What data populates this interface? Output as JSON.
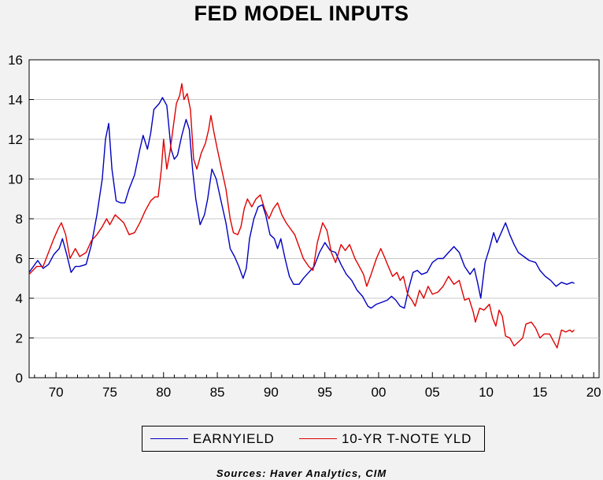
{
  "chart_data": {
    "type": "line",
    "title": "FED MODEL INPUTS",
    "source": "Sources:  Haver Analytics, CIM",
    "xlabel": "",
    "ylabel": "",
    "xlim": [
      1967.5,
      2020.5
    ],
    "ylim": [
      0,
      16
    ],
    "grid": true,
    "legend_position": "bottom",
    "x_tick_labels": [
      "70",
      "75",
      "80",
      "85",
      "90",
      "95",
      "00",
      "05",
      "10",
      "15",
      "20"
    ],
    "x_tick_values": [
      1970,
      1975,
      1980,
      1985,
      1990,
      1995,
      2000,
      2005,
      2010,
      2015,
      2020
    ],
    "y_tick_labels": [
      "0",
      "2",
      "4",
      "6",
      "8",
      "10",
      "12",
      "14",
      "16"
    ],
    "y_tick_values": [
      0,
      2,
      4,
      6,
      8,
      10,
      12,
      14,
      16
    ],
    "series": [
      {
        "name": "EARNYIELD",
        "color": "#0000c0",
        "points": [
          [
            1967.5,
            5.3
          ],
          [
            1968.3,
            5.9
          ],
          [
            1968.8,
            5.5
          ],
          [
            1969.3,
            5.7
          ],
          [
            1969.8,
            6.2
          ],
          [
            1970.3,
            6.5
          ],
          [
            1970.6,
            7.0
          ],
          [
            1971.0,
            6.2
          ],
          [
            1971.4,
            5.3
          ],
          [
            1971.8,
            5.6
          ],
          [
            1972.2,
            5.6
          ],
          [
            1972.8,
            5.7
          ],
          [
            1973.3,
            6.7
          ],
          [
            1973.8,
            8.2
          ],
          [
            1974.3,
            10.0
          ],
          [
            1974.6,
            12.0
          ],
          [
            1974.9,
            12.8
          ],
          [
            1975.2,
            10.5
          ],
          [
            1975.6,
            8.9
          ],
          [
            1976.0,
            8.8
          ],
          [
            1976.4,
            8.8
          ],
          [
            1976.8,
            9.5
          ],
          [
            1977.3,
            10.2
          ],
          [
            1977.8,
            11.5
          ],
          [
            1978.1,
            12.2
          ],
          [
            1978.5,
            11.5
          ],
          [
            1978.8,
            12.3
          ],
          [
            1979.1,
            13.5
          ],
          [
            1979.6,
            13.8
          ],
          [
            1979.9,
            14.1
          ],
          [
            1980.3,
            13.7
          ],
          [
            1980.7,
            11.5
          ],
          [
            1981.0,
            11.0
          ],
          [
            1981.3,
            11.2
          ],
          [
            1981.7,
            12.2
          ],
          [
            1982.1,
            13.0
          ],
          [
            1982.4,
            12.5
          ],
          [
            1982.7,
            10.5
          ],
          [
            1983.0,
            9.0
          ],
          [
            1983.4,
            7.7
          ],
          [
            1983.8,
            8.2
          ],
          [
            1984.1,
            9.0
          ],
          [
            1984.5,
            10.5
          ],
          [
            1984.9,
            10.0
          ],
          [
            1985.3,
            9.0
          ],
          [
            1985.8,
            7.8
          ],
          [
            1986.2,
            6.5
          ],
          [
            1986.6,
            6.1
          ],
          [
            1987.0,
            5.6
          ],
          [
            1987.4,
            5.0
          ],
          [
            1987.7,
            5.5
          ],
          [
            1988.0,
            7.0
          ],
          [
            1988.4,
            8.0
          ],
          [
            1988.8,
            8.6
          ],
          [
            1989.2,
            8.7
          ],
          [
            1989.5,
            8.2
          ],
          [
            1989.9,
            7.2
          ],
          [
            1990.3,
            7.0
          ],
          [
            1990.6,
            6.5
          ],
          [
            1990.9,
            7.0
          ],
          [
            1991.3,
            6.0
          ],
          [
            1991.7,
            5.1
          ],
          [
            1992.1,
            4.7
          ],
          [
            1992.6,
            4.7
          ],
          [
            1993.0,
            5.0
          ],
          [
            1993.5,
            5.3
          ],
          [
            1994.0,
            5.6
          ],
          [
            1994.5,
            6.3
          ],
          [
            1995.0,
            6.8
          ],
          [
            1995.5,
            6.4
          ],
          [
            1996.0,
            6.3
          ],
          [
            1996.5,
            5.7
          ],
          [
            1997.0,
            5.2
          ],
          [
            1997.5,
            4.9
          ],
          [
            1998.0,
            4.4
          ],
          [
            1998.5,
            4.1
          ],
          [
            1999.0,
            3.6
          ],
          [
            1999.3,
            3.5
          ],
          [
            1999.8,
            3.7
          ],
          [
            2000.3,
            3.8
          ],
          [
            2000.8,
            3.9
          ],
          [
            2001.2,
            4.1
          ],
          [
            2001.6,
            3.9
          ],
          [
            2002.0,
            3.6
          ],
          [
            2002.4,
            3.5
          ],
          [
            2002.8,
            4.5
          ],
          [
            2003.2,
            5.3
          ],
          [
            2003.6,
            5.4
          ],
          [
            2004.0,
            5.2
          ],
          [
            2004.5,
            5.3
          ],
          [
            2005.0,
            5.8
          ],
          [
            2005.5,
            6.0
          ],
          [
            2006.0,
            6.0
          ],
          [
            2006.5,
            6.3
          ],
          [
            2007.0,
            6.6
          ],
          [
            2007.5,
            6.3
          ],
          [
            2008.0,
            5.6
          ],
          [
            2008.5,
            5.2
          ],
          [
            2008.9,
            5.5
          ],
          [
            2009.2,
            4.8
          ],
          [
            2009.5,
            4.0
          ],
          [
            2009.9,
            5.8
          ],
          [
            2010.3,
            6.5
          ],
          [
            2010.7,
            7.3
          ],
          [
            2011.0,
            6.8
          ],
          [
            2011.4,
            7.3
          ],
          [
            2011.8,
            7.8
          ],
          [
            2012.2,
            7.2
          ],
          [
            2012.6,
            6.7
          ],
          [
            2013.0,
            6.3
          ],
          [
            2013.5,
            6.1
          ],
          [
            2014.0,
            5.9
          ],
          [
            2014.6,
            5.8
          ],
          [
            2015.0,
            5.4
          ],
          [
            2015.5,
            5.1
          ],
          [
            2016.0,
            4.9
          ],
          [
            2016.5,
            4.6
          ],
          [
            2017.0,
            4.8
          ],
          [
            2017.5,
            4.7
          ],
          [
            2018.0,
            4.8
          ],
          [
            2018.2,
            4.75
          ]
        ]
      },
      {
        "name": "10-YR T-NOTE YLD",
        "color": "#e00000",
        "points": [
          [
            1967.5,
            5.2
          ],
          [
            1968.2,
            5.6
          ],
          [
            1968.8,
            5.6
          ],
          [
            1969.3,
            6.3
          ],
          [
            1969.8,
            7.0
          ],
          [
            1970.2,
            7.5
          ],
          [
            1970.5,
            7.8
          ],
          [
            1970.9,
            7.2
          ],
          [
            1971.3,
            6.0
          ],
          [
            1971.8,
            6.5
          ],
          [
            1972.2,
            6.1
          ],
          [
            1972.8,
            6.3
          ],
          [
            1973.3,
            6.9
          ],
          [
            1973.8,
            7.2
          ],
          [
            1974.3,
            7.6
          ],
          [
            1974.7,
            8.0
          ],
          [
            1975.0,
            7.7
          ],
          [
            1975.5,
            8.2
          ],
          [
            1975.9,
            8.0
          ],
          [
            1976.3,
            7.8
          ],
          [
            1976.8,
            7.2
          ],
          [
            1977.3,
            7.3
          ],
          [
            1977.8,
            7.8
          ],
          [
            1978.3,
            8.4
          ],
          [
            1978.8,
            8.9
          ],
          [
            1979.2,
            9.1
          ],
          [
            1979.5,
            9.1
          ],
          [
            1979.8,
            10.5
          ],
          [
            1980.0,
            12.0
          ],
          [
            1980.3,
            10.5
          ],
          [
            1980.6,
            11.4
          ],
          [
            1980.9,
            12.6
          ],
          [
            1981.2,
            13.8
          ],
          [
            1981.5,
            14.2
          ],
          [
            1981.7,
            14.8
          ],
          [
            1981.9,
            14.0
          ],
          [
            1982.2,
            14.3
          ],
          [
            1982.5,
            13.5
          ],
          [
            1982.8,
            11.0
          ],
          [
            1983.1,
            10.5
          ],
          [
            1983.5,
            11.3
          ],
          [
            1983.9,
            11.8
          ],
          [
            1984.2,
            12.5
          ],
          [
            1984.4,
            13.2
          ],
          [
            1984.7,
            12.3
          ],
          [
            1985.0,
            11.5
          ],
          [
            1985.4,
            10.5
          ],
          [
            1985.8,
            9.5
          ],
          [
            1986.2,
            8.0
          ],
          [
            1986.5,
            7.3
          ],
          [
            1986.9,
            7.2
          ],
          [
            1987.2,
            7.6
          ],
          [
            1987.5,
            8.5
          ],
          [
            1987.8,
            9.0
          ],
          [
            1988.2,
            8.6
          ],
          [
            1988.6,
            9.0
          ],
          [
            1989.0,
            9.2
          ],
          [
            1989.4,
            8.5
          ],
          [
            1989.8,
            8.0
          ],
          [
            1990.2,
            8.5
          ],
          [
            1990.6,
            8.8
          ],
          [
            1991.0,
            8.2
          ],
          [
            1991.4,
            7.8
          ],
          [
            1991.8,
            7.5
          ],
          [
            1992.2,
            7.2
          ],
          [
            1992.6,
            6.6
          ],
          [
            1993.0,
            6.0
          ],
          [
            1993.5,
            5.6
          ],
          [
            1993.9,
            5.4
          ],
          [
            1994.3,
            6.8
          ],
          [
            1994.8,
            7.8
          ],
          [
            1995.2,
            7.4
          ],
          [
            1995.6,
            6.3
          ],
          [
            1996.0,
            5.8
          ],
          [
            1996.5,
            6.7
          ],
          [
            1996.9,
            6.4
          ],
          [
            1997.3,
            6.7
          ],
          [
            1997.8,
            6.0
          ],
          [
            1998.2,
            5.6
          ],
          [
            1998.6,
            5.2
          ],
          [
            1998.9,
            4.6
          ],
          [
            1999.3,
            5.2
          ],
          [
            1999.8,
            6.0
          ],
          [
            2000.2,
            6.5
          ],
          [
            2000.6,
            6.0
          ],
          [
            2000.9,
            5.6
          ],
          [
            2001.3,
            5.1
          ],
          [
            2001.7,
            5.3
          ],
          [
            2002.0,
            4.9
          ],
          [
            2002.3,
            5.1
          ],
          [
            2002.7,
            4.2
          ],
          [
            2003.1,
            3.9
          ],
          [
            2003.4,
            3.6
          ],
          [
            2003.8,
            4.4
          ],
          [
            2004.2,
            4.0
          ],
          [
            2004.6,
            4.6
          ],
          [
            2005.0,
            4.2
          ],
          [
            2005.5,
            4.3
          ],
          [
            2006.0,
            4.6
          ],
          [
            2006.5,
            5.1
          ],
          [
            2007.0,
            4.7
          ],
          [
            2007.5,
            4.9
          ],
          [
            2008.0,
            3.9
          ],
          [
            2008.4,
            4.0
          ],
          [
            2008.8,
            3.3
          ],
          [
            2009.0,
            2.8
          ],
          [
            2009.4,
            3.5
          ],
          [
            2009.8,
            3.4
          ],
          [
            2010.3,
            3.7
          ],
          [
            2010.6,
            3.0
          ],
          [
            2010.9,
            2.6
          ],
          [
            2011.2,
            3.4
          ],
          [
            2011.5,
            3.1
          ],
          [
            2011.8,
            2.1
          ],
          [
            2012.2,
            2.0
          ],
          [
            2012.6,
            1.6
          ],
          [
            2013.0,
            1.8
          ],
          [
            2013.4,
            2.0
          ],
          [
            2013.7,
            2.7
          ],
          [
            2014.2,
            2.8
          ],
          [
            2014.6,
            2.5
          ],
          [
            2015.0,
            2.0
          ],
          [
            2015.4,
            2.2
          ],
          [
            2015.9,
            2.2
          ],
          [
            2016.3,
            1.8
          ],
          [
            2016.6,
            1.5
          ],
          [
            2017.0,
            2.4
          ],
          [
            2017.4,
            2.3
          ],
          [
            2017.8,
            2.4
          ],
          [
            2018.0,
            2.3
          ],
          [
            2018.2,
            2.4
          ]
        ]
      }
    ]
  }
}
